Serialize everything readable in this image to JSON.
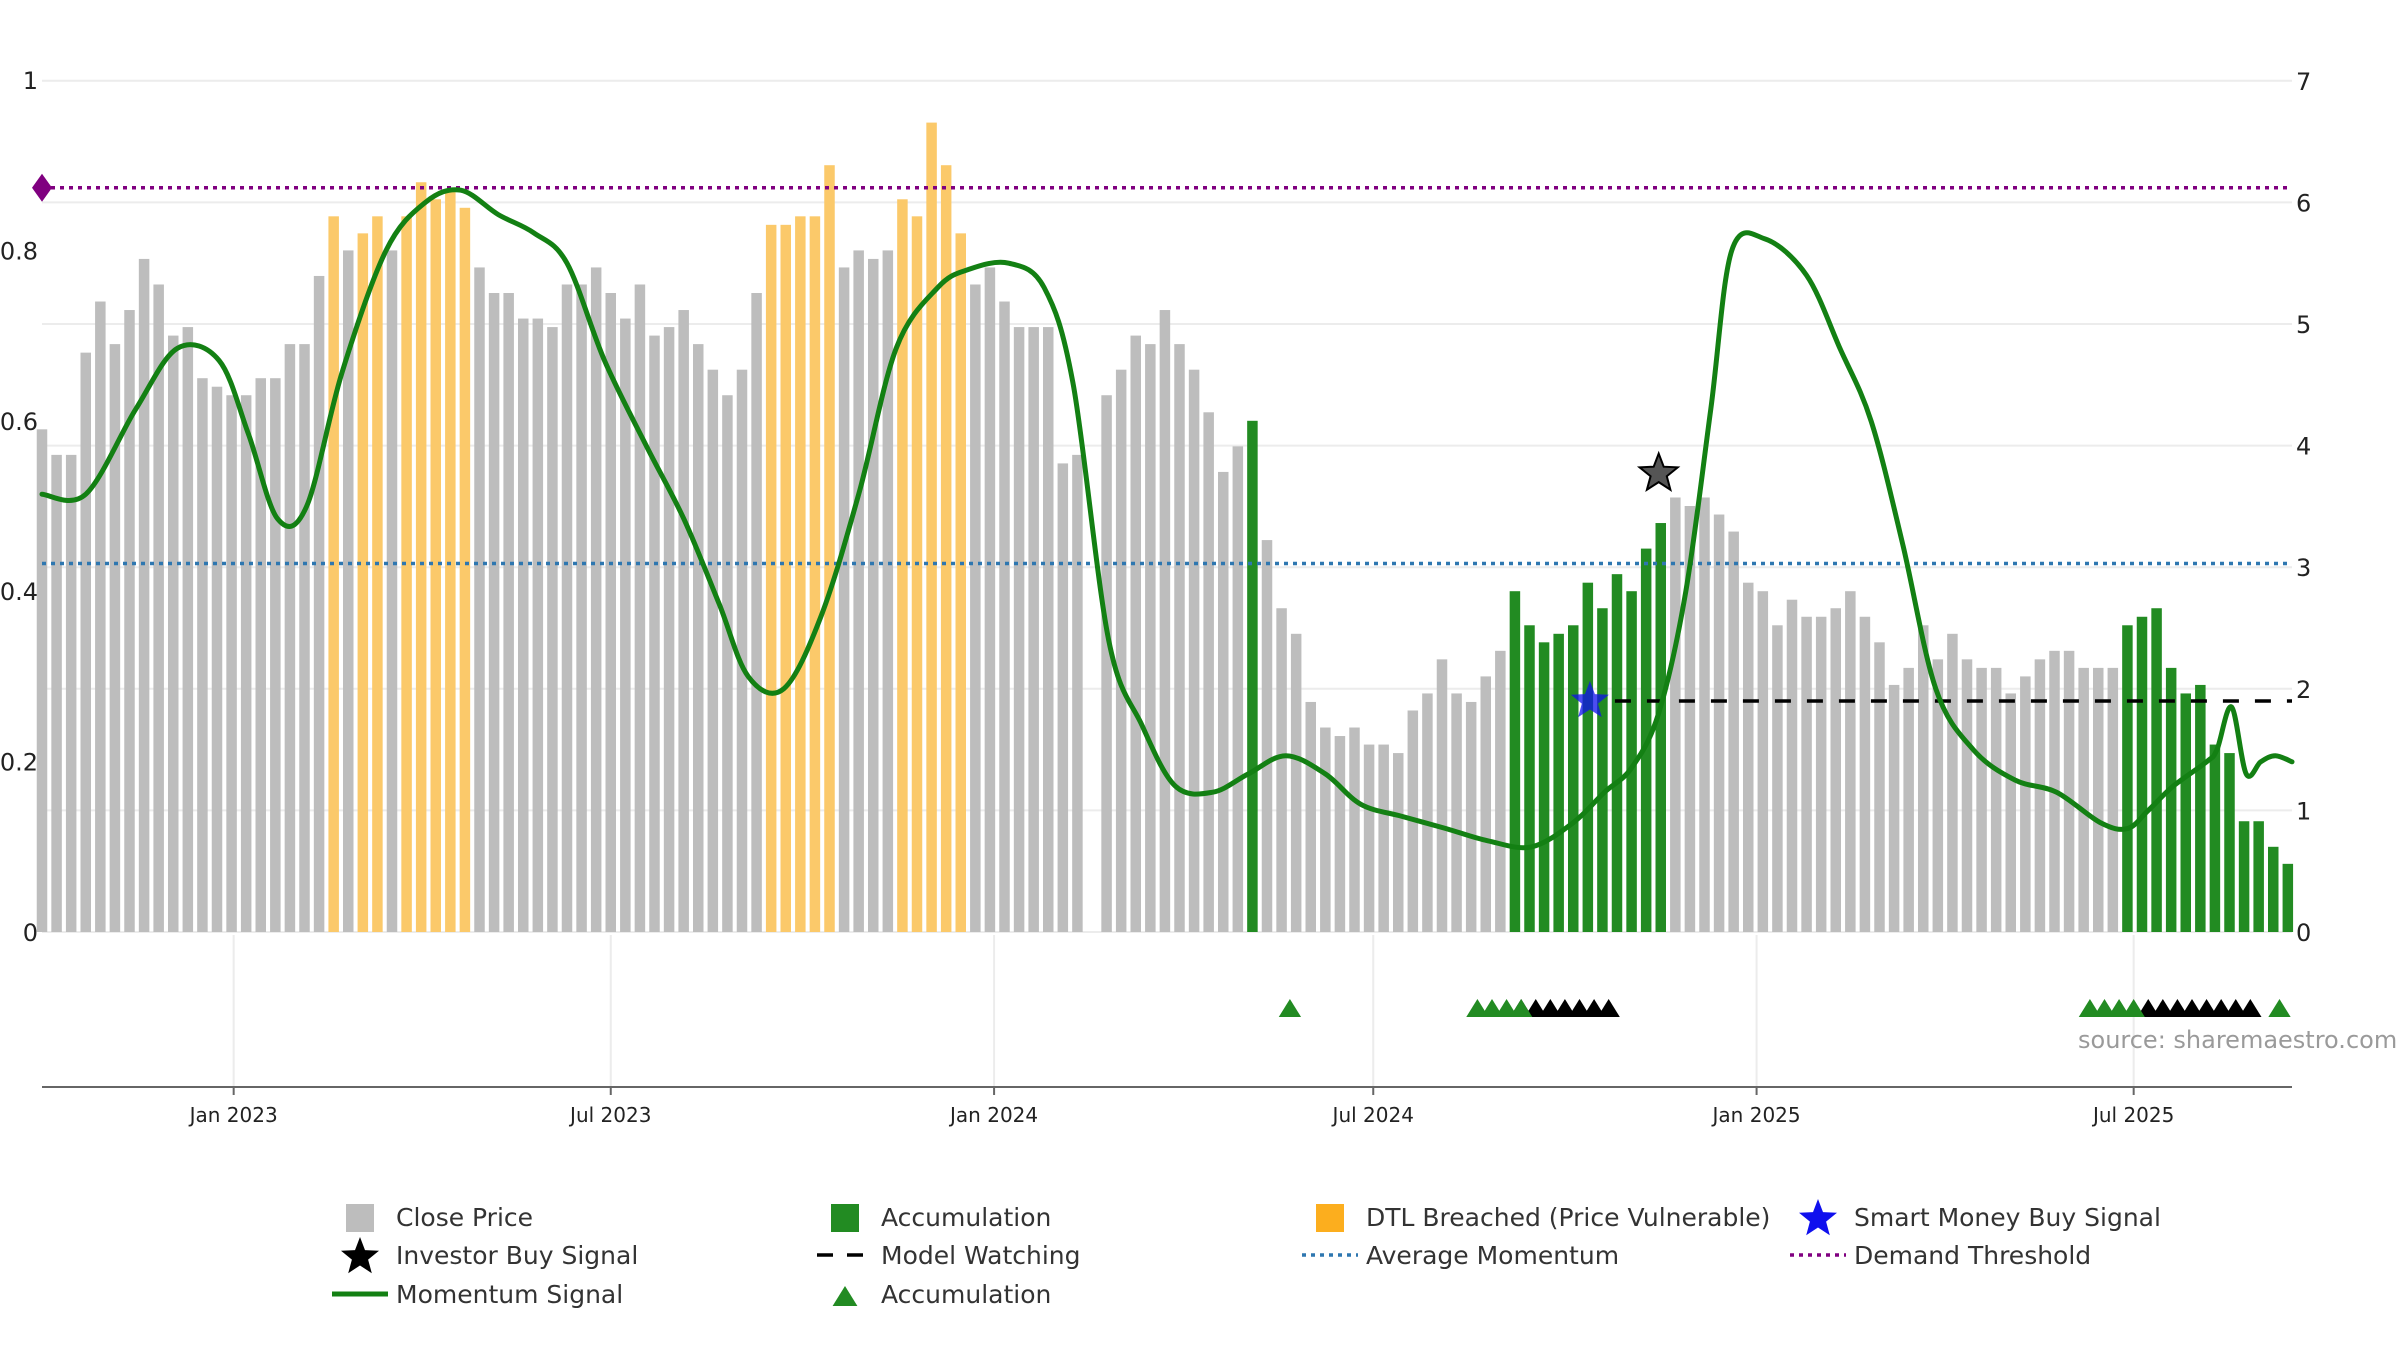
{
  "chart_data": {
    "type": "bar",
    "title": "",
    "source_note": "source: sharemaestro.com",
    "left_axis": {
      "range": [
        0,
        1.0
      ],
      "ticks": [
        "0",
        "0.2",
        "0.4",
        "0.6",
        "0.8",
        "1"
      ]
    },
    "right_axis": {
      "range": [
        0,
        7.5
      ],
      "ticks": [
        "0",
        "1",
        "2",
        "3",
        "4",
        "5",
        "6",
        "7"
      ]
    },
    "x_axis": {
      "range": [
        "2022-10-01",
        "2025-09-15"
      ],
      "ticks": [
        {
          "date": "2023-01-01",
          "label": "Jan 2023"
        },
        {
          "date": "2023-07-01",
          "label": "Jul 2023"
        },
        {
          "date": "2024-01-01",
          "label": "Jan 2024"
        },
        {
          "date": "2024-07-01",
          "label": "Jul 2024"
        },
        {
          "date": "2025-01-01",
          "label": "Jan 2025"
        },
        {
          "date": "2025-07-01",
          "label": "Jul 2025"
        }
      ]
    },
    "bar_start": "2022-10-01",
    "bar_interval_days": 7,
    "close_price_values": [
      0.59,
      0.56,
      0.56,
      0.68,
      0.74,
      0.69,
      0.73,
      0.79,
      0.76,
      0.7,
      0.71,
      0.65,
      0.64,
      0.63,
      0.63,
      0.65,
      0.65,
      0.69,
      0.69,
      0.77,
      0.84,
      0.8,
      0.82,
      0.84,
      0.8,
      0.84,
      0.88,
      0.86,
      0.87,
      0.85,
      0.78,
      0.75,
      0.75,
      0.72,
      0.72,
      0.71,
      0.76,
      0.76,
      0.78,
      0.75,
      0.72,
      0.76,
      0.7,
      0.71,
      0.73,
      0.69,
      0.66,
      0.63,
      0.66,
      0.75,
      0.83,
      0.83,
      0.84,
      0.84,
      0.9,
      0.78,
      0.8,
      0.79,
      0.8,
      0.86,
      0.84,
      0.95,
      0.9,
      0.82,
      0.76,
      0.78,
      0.74,
      0.71,
      0.71,
      0.71,
      0.55,
      0.56,
      0.0,
      0.63,
      0.66,
      0.7,
      0.69,
      0.73,
      0.69,
      0.66,
      0.61,
      0.54,
      0.57,
      0.6,
      0.46,
      0.38,
      0.35,
      0.27,
      0.24,
      0.23,
      0.24,
      0.22,
      0.22,
      0.21,
      0.26,
      0.28,
      0.32,
      0.28,
      0.27,
      0.3,
      0.33,
      0.4,
      0.36,
      0.34,
      0.35,
      0.36,
      0.41,
      0.38,
      0.42,
      0.4,
      0.45,
      0.48,
      0.51,
      0.5,
      0.51,
      0.49,
      0.47,
      0.41,
      0.4,
      0.36,
      0.39,
      0.37,
      0.37,
      0.38,
      0.4,
      0.37,
      0.34,
      0.29,
      0.31,
      0.36,
      0.32,
      0.35,
      0.32,
      0.31,
      0.31,
      0.28,
      0.3,
      0.32,
      0.33,
      0.33,
      0.31,
      0.31,
      0.31,
      0.36,
      0.37,
      0.38,
      0.31,
      0.28,
      0.29,
      0.22,
      0.21,
      0.13,
      0.13,
      0.1,
      0.08
    ],
    "accumulation_bars": [
      83,
      101,
      102,
      103,
      104,
      105,
      106,
      107,
      108,
      109,
      110,
      111,
      143,
      144,
      145,
      146,
      147,
      148,
      149,
      150,
      151,
      152,
      153,
      154,
      155
    ],
    "dtl_breached_bars": [
      20,
      22,
      23,
      25,
      26,
      27,
      28,
      29,
      50,
      51,
      52,
      53,
      54,
      59,
      60,
      61,
      62,
      63
    ],
    "momentum_signal_dates": [
      "2022-10-01",
      "2022-10-22",
      "2022-11-15",
      "2022-12-05",
      "2022-12-25",
      "2023-01-08",
      "2023-01-22",
      "2023-02-05",
      "2023-02-22",
      "2023-03-15",
      "2023-04-03",
      "2023-04-20",
      "2023-05-08",
      "2023-05-25",
      "2023-06-10",
      "2023-06-28",
      "2023-07-18",
      "2023-08-05",
      "2023-08-22",
      "2023-09-05",
      "2023-09-22",
      "2023-10-10",
      "2023-10-28",
      "2023-11-15",
      "2023-12-05",
      "2023-12-20",
      "2024-01-08",
      "2024-01-25",
      "2024-02-08",
      "2024-02-25",
      "2024-03-12",
      "2024-03-28",
      "2024-04-15",
      "2024-05-02",
      "2024-05-20",
      "2024-06-08",
      "2024-06-25",
      "2024-07-15",
      "2024-08-05",
      "2024-08-25",
      "2024-09-15",
      "2024-10-05",
      "2024-10-20",
      "2024-11-02",
      "2024-11-15",
      "2024-11-28",
      "2024-12-10",
      "2024-12-20",
      "2025-01-05",
      "2025-01-25",
      "2025-02-10",
      "2025-02-25",
      "2025-03-12",
      "2025-03-28",
      "2025-04-15",
      "2025-05-05",
      "2025-05-25",
      "2025-06-15",
      "2025-06-28",
      "2025-07-08",
      "2025-07-20",
      "2025-08-05",
      "2025-08-10",
      "2025-08-17",
      "2025-08-24",
      "2025-08-31",
      "2025-09-07",
      "2025-09-15"
    ],
    "momentum_signal_values": [
      3.6,
      3.6,
      4.3,
      4.8,
      4.7,
      4.1,
      3.4,
      3.5,
      4.6,
      5.6,
      6.0,
      6.1,
      5.9,
      5.75,
      5.5,
      4.7,
      4.0,
      3.4,
      2.7,
      2.1,
      2.0,
      2.6,
      3.6,
      4.8,
      5.3,
      5.45,
      5.5,
      5.3,
      4.5,
      2.4,
      1.7,
      1.2,
      1.15,
      1.3,
      1.45,
      1.3,
      1.05,
      0.95,
      0.85,
      0.75,
      0.7,
      0.9,
      1.15,
      1.35,
      1.8,
      2.8,
      4.3,
      5.6,
      5.7,
      5.4,
      4.8,
      4.2,
      3.2,
      2.0,
      1.5,
      1.25,
      1.15,
      0.9,
      0.85,
      1.0,
      1.2,
      1.4,
      1.5,
      1.85,
      1.3,
      1.4,
      1.45,
      1.4
    ],
    "average_momentum": 3.03,
    "demand_threshold": 6.12,
    "model_watching": {
      "start": "2024-10-25",
      "end": "2025-09-15",
      "value": 1.9
    },
    "investor_buy_signal": {
      "date": "2024-11-15",
      "value": 3.77
    },
    "smart_money_buy_signal": {
      "date": "2024-10-13",
      "value": 1.9
    },
    "demand_threshold_marker": {
      "date": "2022-10-01",
      "value": 6.12
    },
    "accumulation_markers_green": [
      "2024-05-22",
      "2024-08-20",
      "2024-08-27",
      "2024-09-03",
      "2024-09-10",
      "2025-06-10",
      "2025-06-17",
      "2025-06-24",
      "2025-07-01",
      "2025-09-09"
    ],
    "accumulation_markers_black": [
      "2024-09-10",
      "2024-09-17",
      "2024-09-24",
      "2024-10-01",
      "2024-10-08",
      "2024-10-15",
      "2024-10-22",
      "2025-07-08",
      "2025-07-15",
      "2025-07-22",
      "2025-07-29",
      "2025-08-05",
      "2025-08-12",
      "2025-08-19",
      "2025-08-26"
    ],
    "colors": {
      "close_price": "#bdbdbd",
      "accumulation": "#228b22",
      "dtl_breached": "#fbc96a",
      "momentum": "#138013",
      "average_momentum": "#2e77b0",
      "demand_threshold": "#800080",
      "model_watching": "#000000",
      "smart_money": "#1010ee",
      "investor": "#000000",
      "grid": "#ececec"
    },
    "legend": [
      {
        "key": "close",
        "label": "Close Price",
        "symbol": "square-gray"
      },
      {
        "key": "accum_bar",
        "label": "Accumulation",
        "symbol": "square-green"
      },
      {
        "key": "dtl",
        "label": "DTL Breached (Price Vulnerable)",
        "symbol": "square-orange"
      },
      {
        "key": "smart",
        "label": "Smart Money Buy Signal",
        "symbol": "star-blue"
      },
      {
        "key": "investor",
        "label": "Investor Buy Signal",
        "symbol": "star-black"
      },
      {
        "key": "watching",
        "label": "Model Watching",
        "symbol": "dash-black"
      },
      {
        "key": "avg",
        "label": "Average Momentum",
        "symbol": "dot-blue"
      },
      {
        "key": "demand",
        "label": "Demand Threshold",
        "symbol": "dot-purple"
      },
      {
        "key": "momentum",
        "label": "Momentum Signal",
        "symbol": "line-green"
      },
      {
        "key": "accum_tri",
        "label": "Accumulation",
        "symbol": "triangle-green"
      }
    ]
  }
}
